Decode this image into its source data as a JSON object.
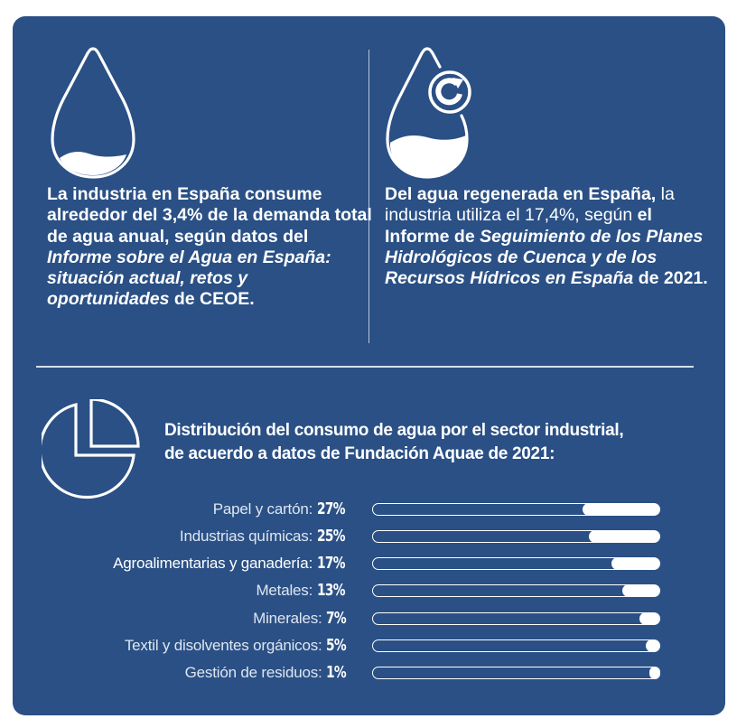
{
  "colors": {
    "background": "#2a5085",
    "foreground": "#ffffff",
    "divider": "#d6dfec"
  },
  "top_left": {
    "icon": "water-drop-icon",
    "text_segments": [
      {
        "text": "La industria en España consume alrededor del 3,4% de la demanda total de agua anual, según datos del ",
        "style": "bold"
      },
      {
        "text": "Informe sobre el Agua en España: situación actual, retos y oportunidades",
        "style": "bold-italic"
      },
      {
        "text": " de CEOE.",
        "style": "bold"
      }
    ]
  },
  "top_right": {
    "icon": "recycled-water-drop-icon",
    "text_segments": [
      {
        "text": "Del agua regenerada en España,",
        "style": "bold"
      },
      {
        "text": " la industria utiliza el 17,4%, según ",
        "style": "regular"
      },
      {
        "text": "el Informe de ",
        "style": "bold"
      },
      {
        "text": "Seguimiento de los Planes Hidrológicos de Cuenca y de los Recursos Hídricos en España",
        "style": "bold-italic"
      },
      {
        "text": " de 2021.",
        "style": "bold"
      }
    ]
  },
  "distribution": {
    "icon": "pie-chart-icon",
    "title_line1": "Distribución del consumo de agua por el sector industrial,",
    "title_line2": "de acuerdo a datos de Fundación Aquae de 2021:"
  },
  "chart_data": {
    "type": "bar",
    "orientation": "horizontal",
    "title": "Distribución del consumo de agua por el sector industrial, de acuerdo a datos de Fundación Aquae de 2021:",
    "xlabel": "",
    "ylabel": "",
    "xlim": [
      0,
      100
    ],
    "grid": false,
    "legend": "none",
    "categories": [
      "Papel y cartón",
      "Industrias químicas",
      "Agroalimentarias y ganadería",
      "Metales",
      "Minerales",
      "Textil y disolventes orgánicos",
      "Gestión de residuos"
    ],
    "values": [
      27,
      25,
      17,
      13,
      7,
      5,
      1
    ],
    "value_labels": [
      "27%",
      "25%",
      "17%",
      "13%",
      "7%",
      "5%",
      "1%"
    ],
    "unit": "%"
  }
}
